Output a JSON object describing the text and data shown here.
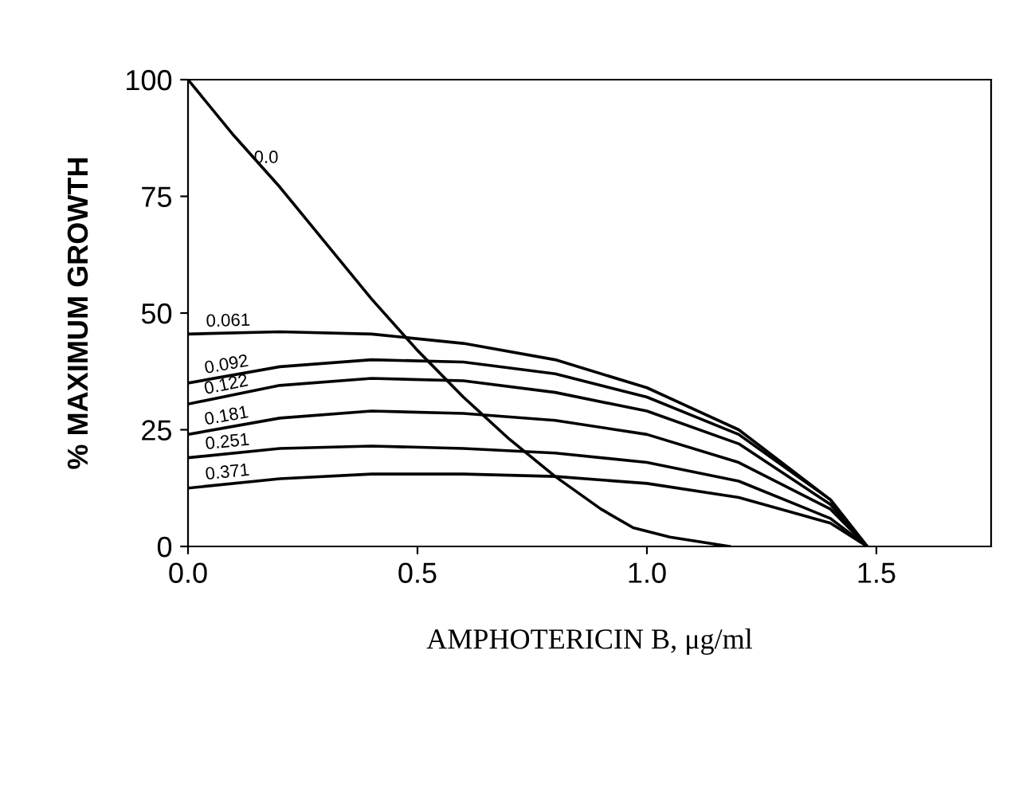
{
  "chart_data": {
    "type": "line",
    "xlabel": "AMPHOTERICIN B, μg/ml",
    "ylabel": "% MAXIMUM GROWTH",
    "xlim": [
      0,
      1.75
    ],
    "ylim": [
      0,
      100
    ],
    "xticks": [
      {
        "value": 0,
        "label": "0.0"
      },
      {
        "value": 0.5,
        "label": "0.5"
      },
      {
        "value": 1.0,
        "label": "1.0"
      },
      {
        "value": 1.5,
        "label": "1.5"
      }
    ],
    "yticks": [
      0,
      25,
      50,
      75,
      100
    ],
    "grid": false,
    "legend": false,
    "marker": "none",
    "line_style": "solid",
    "series": [
      {
        "name": "0.0",
        "color": "#000000",
        "x": [
          0,
          0.1,
          0.2,
          0.3,
          0.4,
          0.5,
          0.6,
          0.7,
          0.8,
          0.9,
          0.97,
          1.05,
          1.18
        ],
        "values": [
          100,
          88,
          77,
          65,
          53,
          42,
          32,
          23,
          15,
          8,
          4,
          2,
          0
        ]
      },
      {
        "name": "0.061",
        "color": "#000000",
        "x": [
          0,
          0.2,
          0.4,
          0.6,
          0.8,
          1.0,
          1.2,
          1.4,
          1.48
        ],
        "values": [
          45.5,
          46,
          45.5,
          43.5,
          40,
          34,
          25,
          10,
          0
        ]
      },
      {
        "name": "0.092",
        "color": "#000000",
        "x": [
          0,
          0.2,
          0.4,
          0.6,
          0.8,
          1.0,
          1.2,
          1.4,
          1.48
        ],
        "values": [
          35,
          38.5,
          40,
          39.5,
          37,
          32,
          24,
          10,
          0
        ]
      },
      {
        "name": "0.122",
        "color": "#000000",
        "x": [
          0,
          0.2,
          0.4,
          0.6,
          0.8,
          1.0,
          1.2,
          1.4,
          1.48
        ],
        "values": [
          30.5,
          34.5,
          36,
          35.5,
          33,
          29,
          22,
          9,
          0
        ]
      },
      {
        "name": "0.181",
        "color": "#000000",
        "x": [
          0,
          0.2,
          0.4,
          0.6,
          0.8,
          1.0,
          1.2,
          1.4,
          1.48
        ],
        "values": [
          24,
          27.5,
          29,
          28.5,
          27,
          24,
          18,
          8,
          0
        ]
      },
      {
        "name": "0.251",
        "color": "#000000",
        "x": [
          0,
          0.2,
          0.4,
          0.6,
          0.8,
          1.0,
          1.2,
          1.4,
          1.48
        ],
        "values": [
          19,
          21,
          21.5,
          21,
          20,
          18,
          14,
          6,
          0
        ]
      },
      {
        "name": "0.371",
        "color": "#000000",
        "x": [
          0,
          0.2,
          0.4,
          0.6,
          0.8,
          1.0,
          1.2,
          1.4,
          1.48
        ],
        "values": [
          12.5,
          14.5,
          15.5,
          15.5,
          15,
          13.5,
          10.5,
          5,
          0
        ]
      }
    ]
  }
}
